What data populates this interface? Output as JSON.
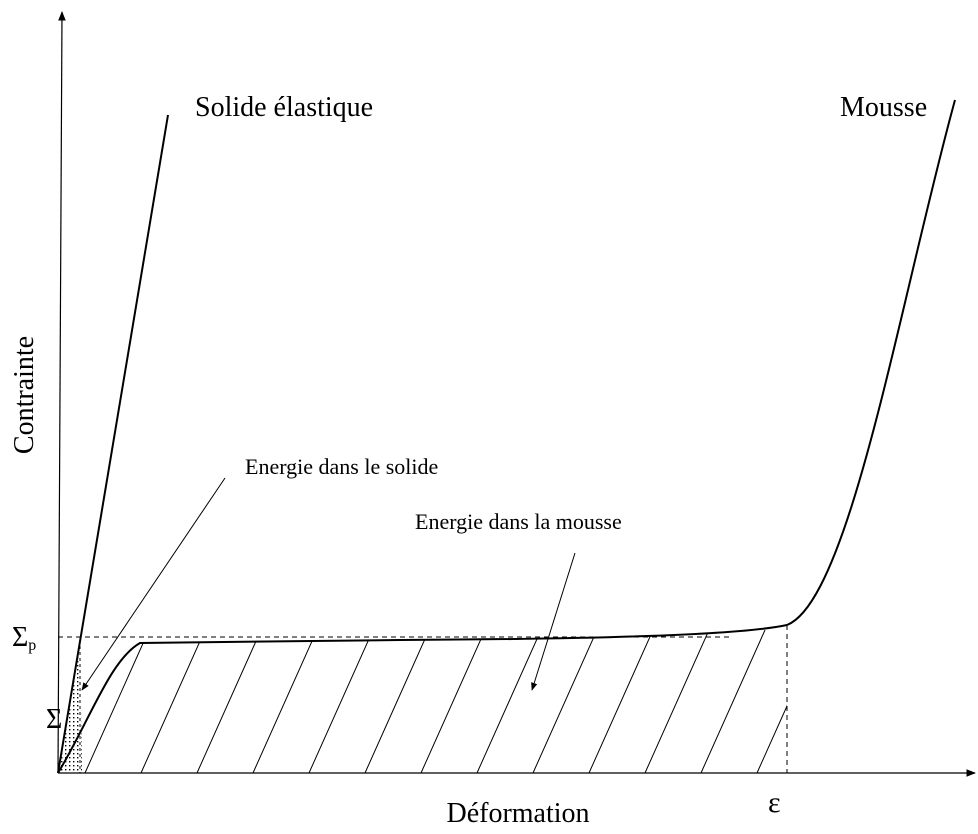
{
  "axes": {
    "y_label": "Contrainte",
    "x_label": "Déformation"
  },
  "curves": {
    "solid": "Solide élastique",
    "foam": "Mousse"
  },
  "annotations": {
    "solid_energy": "Energie dans le solide",
    "foam_energy": "Energie dans la mousse"
  },
  "markers": {
    "plateau_stress": {
      "symbol": "Σ",
      "subscript": "p"
    },
    "lower_stress": {
      "symbol": "Σ"
    },
    "strain": "ε"
  }
}
